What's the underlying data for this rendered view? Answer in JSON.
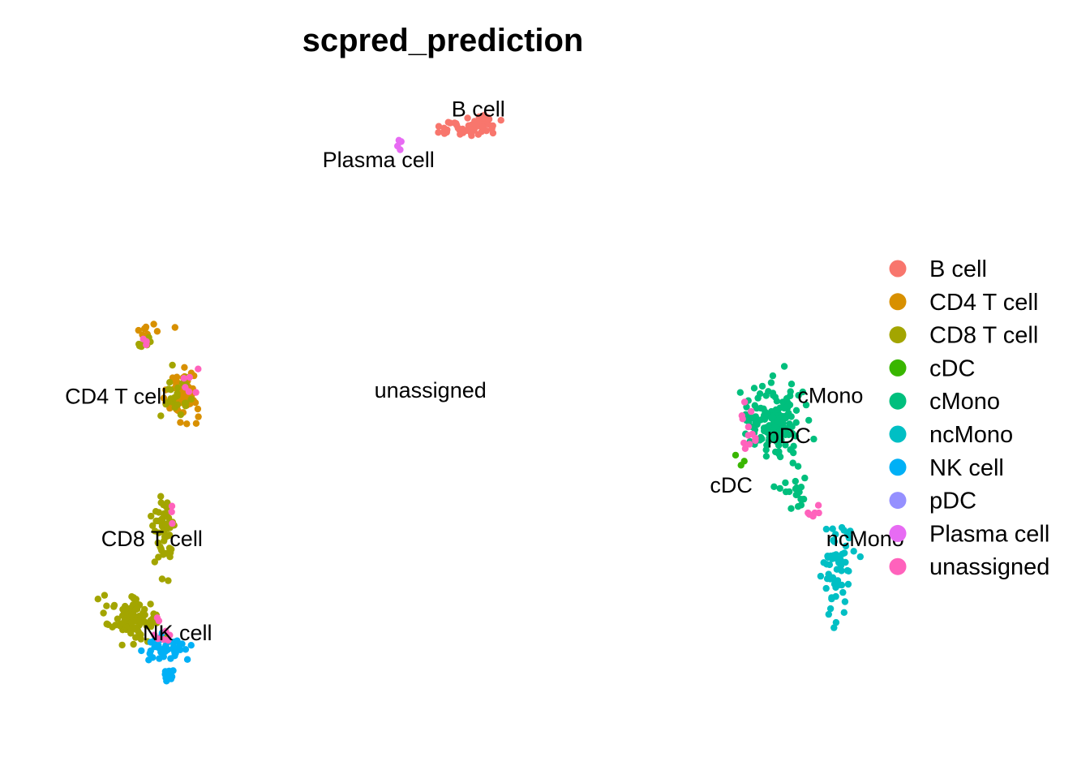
{
  "chart_data": {
    "type": "scatter",
    "title": "scpred_prediction",
    "xlabel": "",
    "ylabel": "",
    "axes_visible": false,
    "grid": false,
    "legend_position": "right",
    "xlim": [
      0,
      12.52
    ],
    "ylim": [
      0,
      7.62
    ],
    "categories": [
      {
        "name": "B cell",
        "color": "#F8766D"
      },
      {
        "name": "CD4 T cell",
        "color": "#D89000"
      },
      {
        "name": "CD8 T cell",
        "color": "#A3A500"
      },
      {
        "name": "cDC",
        "color": "#39B600"
      },
      {
        "name": "cMono",
        "color": "#00BF7D"
      },
      {
        "name": "ncMono",
        "color": "#00BFC4"
      },
      {
        "name": "NK cell",
        "color": "#00B0F6"
      },
      {
        "name": "pDC",
        "color": "#9590FF"
      },
      {
        "name": "Plasma cell",
        "color": "#E76BF3"
      },
      {
        "name": "unassigned",
        "color": "#FF62BC"
      }
    ],
    "cluster_labels": [
      {
        "text": "B cell",
        "x": 6.64,
        "y": 7.29
      },
      {
        "text": "Plasma cell",
        "x": 5.12,
        "y": 6.7
      },
      {
        "text": "CD4 T cell",
        "x": 1.12,
        "y": 3.93
      },
      {
        "text": "unassigned",
        "x": 5.91,
        "y": 4.0
      },
      {
        "text": "CD8 T cell",
        "x": 1.67,
        "y": 2.26
      },
      {
        "text": "NK cell",
        "x": 2.06,
        "y": 1.16
      },
      {
        "text": "cMono",
        "x": 12.0,
        "y": 3.94
      },
      {
        "text": "pDC",
        "x": 11.37,
        "y": 3.47
      },
      {
        "text": "cDC",
        "x": 10.49,
        "y": 2.89
      },
      {
        "text": "ncMono",
        "x": 12.53,
        "y": 2.26
      }
    ],
    "clusters": [
      {
        "category": "B cell",
        "x_center": 6.42,
        "y_center": 7.06,
        "x_spread": 0.36,
        "y_spread": 0.08,
        "n": 38
      },
      {
        "category": "B cell",
        "x_center": 6.72,
        "y_center": 7.11,
        "x_spread": 0.1,
        "y_spread": 0.08,
        "n": 25
      },
      {
        "category": "Plasma cell",
        "x_center": 5.42,
        "y_center": 6.9,
        "x_spread": 0.05,
        "y_spread": 0.05,
        "n": 4
      },
      {
        "category": "CD4 T cell",
        "x_center": 1.62,
        "y_center": 4.7,
        "x_spread": 0.25,
        "y_spread": 0.1,
        "n": 10
      },
      {
        "category": "CD8 T cell",
        "x_center": 1.53,
        "y_center": 4.56,
        "x_spread": 0.12,
        "y_spread": 0.08,
        "n": 8
      },
      {
        "category": "unassigned",
        "x_center": 1.58,
        "y_center": 4.58,
        "x_spread": 0.08,
        "y_spread": 0.06,
        "n": 3
      },
      {
        "category": "CD4 T cell",
        "x_center": 2.12,
        "y_center": 3.95,
        "x_spread": 0.2,
        "y_spread": 0.22,
        "n": 70
      },
      {
        "category": "CD8 T cell",
        "x_center": 2.05,
        "y_center": 3.92,
        "x_spread": 0.18,
        "y_spread": 0.22,
        "n": 25
      },
      {
        "category": "unassigned",
        "x_center": 2.25,
        "y_center": 4.02,
        "x_spread": 0.12,
        "y_spread": 0.2,
        "n": 6
      },
      {
        "category": "CD8 T cell",
        "x_center": 1.85,
        "y_center": 2.4,
        "x_spread": 0.12,
        "y_spread": 0.35,
        "n": 60
      },
      {
        "category": "unassigned",
        "x_center": 1.98,
        "y_center": 2.5,
        "x_spread": 0.08,
        "y_spread": 0.2,
        "n": 3
      },
      {
        "category": "CD8 T cell",
        "x_center": 1.4,
        "y_center": 1.32,
        "x_spread": 0.3,
        "y_spread": 0.22,
        "n": 110
      },
      {
        "category": "NK cell",
        "x_center": 1.9,
        "y_center": 0.98,
        "x_spread": 0.25,
        "y_spread": 0.12,
        "n": 40
      },
      {
        "category": "NK cell",
        "x_center": 1.92,
        "y_center": 0.7,
        "x_spread": 0.06,
        "y_spread": 0.1,
        "n": 10
      },
      {
        "category": "unassigned",
        "x_center": 1.85,
        "y_center": 1.2,
        "x_spread": 0.18,
        "y_spread": 0.22,
        "n": 8
      },
      {
        "category": "cMono",
        "x_center": 11.15,
        "y_center": 3.65,
        "x_spread": 0.35,
        "y_spread": 0.35,
        "n": 150
      },
      {
        "category": "cMono",
        "x_center": 11.45,
        "y_center": 2.8,
        "x_spread": 0.22,
        "y_spread": 0.12,
        "n": 18
      },
      {
        "category": "unassigned",
        "x_center": 10.75,
        "y_center": 3.5,
        "x_spread": 0.18,
        "y_spread": 0.35,
        "n": 12
      },
      {
        "category": "cDC",
        "x_center": 10.65,
        "y_center": 3.2,
        "x_spread": 0.08,
        "y_spread": 0.06,
        "n": 3
      },
      {
        "category": "unassigned",
        "x_center": 11.73,
        "y_center": 2.55,
        "x_spread": 0.12,
        "y_spread": 0.08,
        "n": 6
      },
      {
        "category": "ncMono",
        "x_center": 12.1,
        "y_center": 1.98,
        "x_spread": 0.18,
        "y_spread": 0.4,
        "n": 60
      }
    ],
    "seed": 17
  }
}
